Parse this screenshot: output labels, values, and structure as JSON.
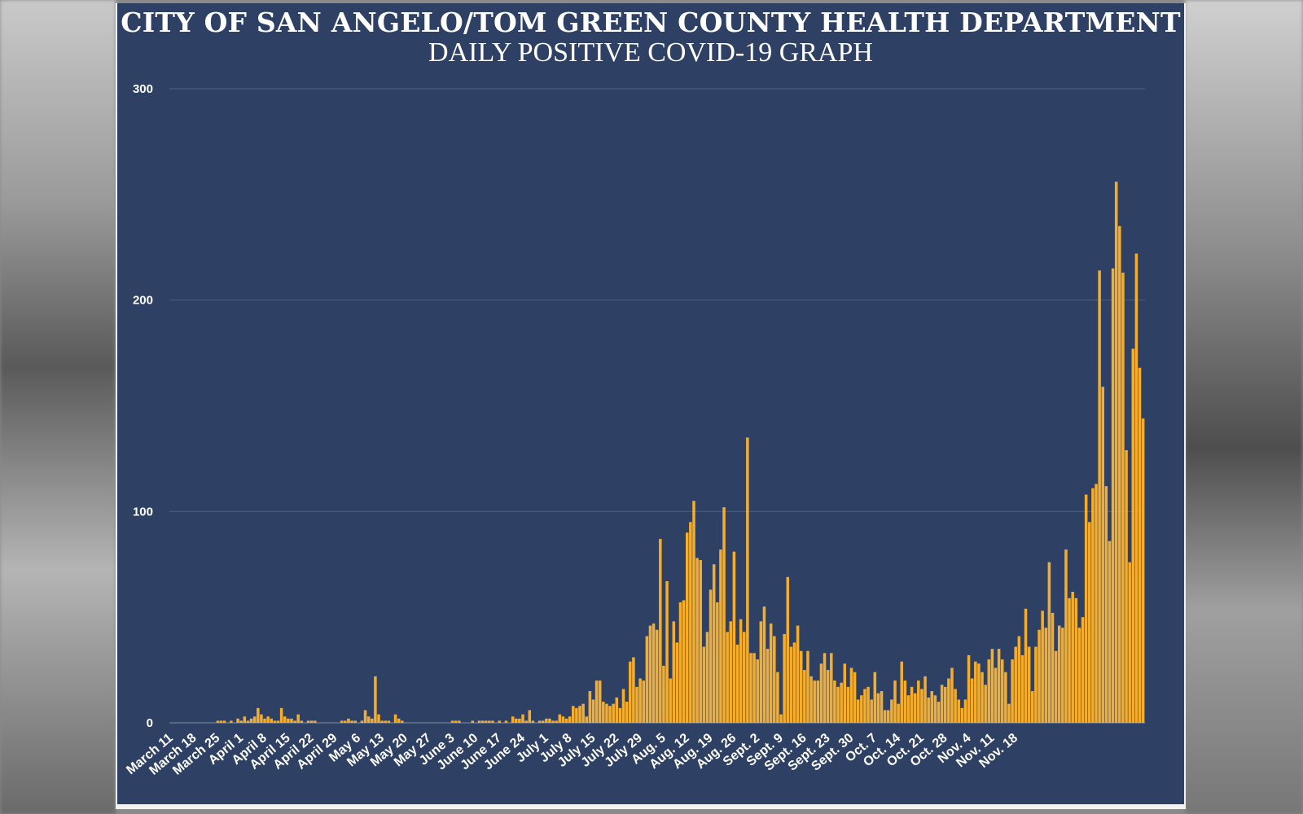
{
  "chart_data": {
    "type": "bar",
    "title": "CITY OF SAN ANGELO/TOM GREEN COUNTY HEALTH DEPARTMENT",
    "subtitle": "DAILY POSITIVE COVID-19 GRAPH",
    "xlabel": "",
    "ylabel": "",
    "ylim": [
      0,
      300
    ],
    "yticks": [
      "0",
      "100",
      "200",
      "300"
    ],
    "grid": true,
    "bar_color": "#f4ad2d",
    "background_color": "#2e4164",
    "x_tick_labels": [
      "March 11",
      "March 18",
      "March 25",
      "April 1",
      "April 8",
      "April 15",
      "April 22",
      "April 29",
      "May 6",
      "May 13",
      "May 20",
      "May 27",
      "June 3",
      "June 10",
      "June 17",
      "June 24",
      "July 1",
      "July 8",
      "July 15",
      "July 22",
      "July 29",
      "Aug. 5",
      "Aug. 12",
      "Aug. 19",
      "Aug. 26",
      "Sept. 2",
      "Sept. 9",
      "Sept. 16",
      "Sept. 23",
      "Sept. 30",
      "Oct. 7",
      "Oct. 14",
      "Oct. 21",
      "Oct. 28",
      "Nov. 4",
      "Nov. 11",
      "Nov. 18"
    ],
    "start_label": "March 11",
    "values": [
      0,
      0,
      0,
      0,
      0,
      0,
      0,
      0,
      0,
      0,
      0,
      0,
      0,
      0,
      1,
      1,
      1,
      0,
      1,
      0,
      2,
      1,
      3,
      1,
      2,
      3,
      7,
      4,
      2,
      3,
      2,
      1,
      1,
      7,
      3,
      2,
      2,
      1,
      4,
      1,
      0,
      1,
      1,
      1,
      0,
      0,
      0,
      0,
      0,
      0,
      0,
      1,
      1,
      2,
      1,
      1,
      0,
      1,
      6,
      3,
      2,
      22,
      4,
      1,
      1,
      1,
      0,
      4,
      2,
      1,
      0,
      0,
      0,
      0,
      0,
      0,
      0,
      0,
      0,
      0,
      0,
      0,
      0,
      0,
      1,
      1,
      1,
      0,
      0,
      0,
      1,
      0,
      1,
      1,
      1,
      1,
      1,
      0,
      1,
      0,
      1,
      0,
      3,
      2,
      2,
      4,
      1,
      6,
      1,
      0,
      1,
      1,
      2,
      2,
      1,
      1,
      4,
      3,
      2,
      3,
      8,
      7,
      8,
      9,
      3,
      15,
      11,
      20,
      20,
      10,
      9,
      8,
      9,
      12,
      7,
      16,
      10,
      29,
      31,
      17,
      21,
      20,
      41,
      46,
      47,
      44,
      87,
      27,
      67,
      21,
      48,
      38,
      57,
      58,
      90,
      95,
      105,
      78,
      77,
      36,
      43,
      63,
      75,
      57,
      82,
      102,
      43,
      48,
      81,
      37,
      49,
      43,
      135,
      33,
      33,
      30,
      48,
      55,
      35,
      47,
      41,
      24,
      4,
      42,
      69,
      36,
      38,
      46,
      34,
      25,
      34,
      22,
      20,
      20,
      28,
      33,
      25,
      33,
      20,
      17,
      19,
      28,
      17,
      26,
      24,
      11,
      13,
      16,
      17,
      11,
      24,
      14,
      15,
      6,
      6,
      11,
      20,
      9,
      29,
      20,
      13,
      17,
      14,
      20,
      16,
      22,
      12,
      15,
      13,
      10,
      18,
      17,
      21,
      26,
      16,
      11,
      7,
      11,
      32,
      21,
      29,
      28,
      24,
      18,
      30,
      35,
      26,
      35,
      30,
      24,
      9,
      30,
      36,
      41,
      32,
      54,
      36,
      15,
      36,
      44,
      53,
      45,
      76,
      52,
      34,
      46,
      45,
      82,
      59,
      62,
      59,
      45,
      50,
      108,
      95,
      111,
      113,
      214,
      159,
      112,
      86,
      215,
      256,
      235,
      213,
      129,
      76,
      177,
      222,
      168,
      144
    ]
  }
}
